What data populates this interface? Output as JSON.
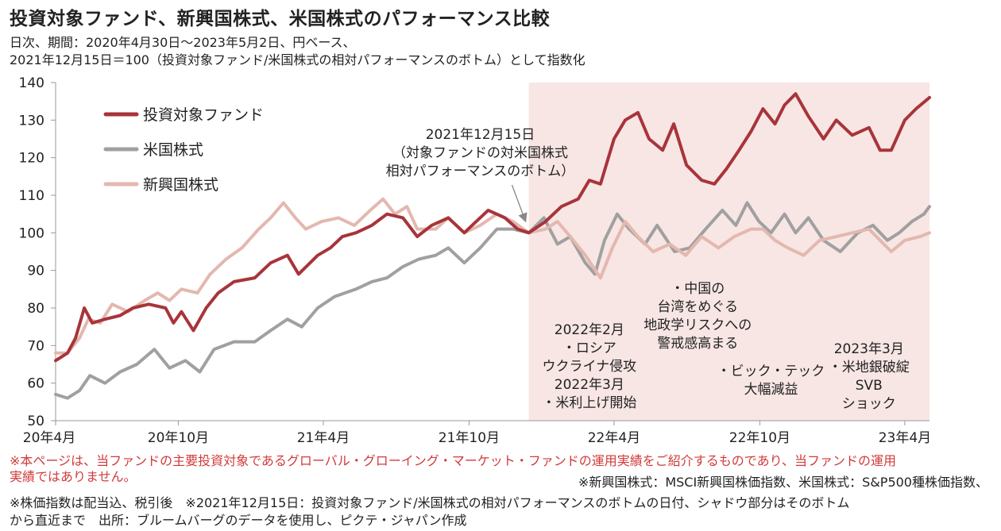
{
  "title": "投資対象ファンド、新興国株式、米国株式のパフォーマンス比較",
  "subtitle1": "日次、期間：2020年4月30日～2023年5月2日、円ベース、",
  "subtitle2": "2021年12月15日＝100（投資対象ファンド/米国株式の相対パフォーマンスのボトム）として指数化",
  "notes": {
    "line1": "※本ページは、当ファンドの主要投資対象であるグローバル・グローイング・マーケット・ファンドの運用実績をご紹介するものであり、当ファンドの運用",
    "line2": "実績ではありません。",
    "line3": "※新興国株式：MSCI新興国株価指数、米国株式：S&P500種株価指数、",
    "line4": "※株価指数は配当込、税引後　※2021年12月15日：投資対象ファンド/米国株式の相対パフォーマンスのボトムの日付、シャドウ部分はそのボトム",
    "line5": "から直近まで　出所：ブルームバーグのデータを使用し、ピクテ・ジャパン作成"
  },
  "chart_data": {
    "type": "line",
    "ylim": [
      50,
      140
    ],
    "yticks": [
      50,
      60,
      70,
      80,
      90,
      100,
      110,
      120,
      130,
      140
    ],
    "xlim": [
      "2020-04-30",
      "2023-05-02"
    ],
    "xticks": [
      {
        "date": "2020-04-01",
        "label": "20年4月"
      },
      {
        "date": "2020-10-01",
        "label": "20年10月"
      },
      {
        "date": "2021-04-01",
        "label": "21年4月"
      },
      {
        "date": "2021-10-01",
        "label": "21年10月"
      },
      {
        "date": "2022-04-01",
        "label": "22年4月"
      },
      {
        "date": "2022-10-01",
        "label": "22年10月"
      },
      {
        "date": "2023-04-01",
        "label": "23年4月"
      }
    ],
    "shade": {
      "from": "2021-12-15",
      "to": "2023-05-02",
      "color": "#f7e6e4"
    },
    "legend_position": "top-left",
    "series": [
      {
        "name": "投資対象ファンド",
        "color": "#a8343a",
        "points": [
          [
            "2020-04-30",
            66
          ],
          [
            "2020-05-15",
            68
          ],
          [
            "2020-05-25",
            72
          ],
          [
            "2020-06-05",
            80
          ],
          [
            "2020-06-15",
            76
          ],
          [
            "2020-07-01",
            77
          ],
          [
            "2020-07-20",
            78
          ],
          [
            "2020-08-05",
            80
          ],
          [
            "2020-08-25",
            81
          ],
          [
            "2020-09-15",
            80
          ],
          [
            "2020-09-25",
            76
          ],
          [
            "2020-10-05",
            79
          ],
          [
            "2020-10-20",
            74
          ],
          [
            "2020-11-05",
            80
          ],
          [
            "2020-11-20",
            84
          ],
          [
            "2020-12-10",
            87
          ],
          [
            "2021-01-05",
            88
          ],
          [
            "2021-01-25",
            92
          ],
          [
            "2021-02-15",
            94
          ],
          [
            "2021-03-01",
            89
          ],
          [
            "2021-03-25",
            94
          ],
          [
            "2021-04-10",
            96
          ],
          [
            "2021-04-25",
            99
          ],
          [
            "2021-05-12",
            100
          ],
          [
            "2021-06-01",
            102
          ],
          [
            "2021-06-20",
            105
          ],
          [
            "2021-07-10",
            104
          ],
          [
            "2021-07-28",
            99
          ],
          [
            "2021-08-15",
            102
          ],
          [
            "2021-09-05",
            104
          ],
          [
            "2021-09-25",
            100
          ],
          [
            "2021-10-10",
            103
          ],
          [
            "2021-10-25",
            106
          ],
          [
            "2021-11-15",
            104
          ],
          [
            "2021-12-01",
            101
          ],
          [
            "2021-12-15",
            100
          ],
          [
            "2022-01-05",
            103
          ],
          [
            "2022-01-25",
            107
          ],
          [
            "2022-02-15",
            109
          ],
          [
            "2022-03-01",
            114
          ],
          [
            "2022-03-15",
            113
          ],
          [
            "2022-04-01",
            125
          ],
          [
            "2022-04-15",
            130
          ],
          [
            "2022-05-01",
            132
          ],
          [
            "2022-05-15",
            125
          ],
          [
            "2022-06-01",
            122
          ],
          [
            "2022-06-15",
            129
          ],
          [
            "2022-07-01",
            118
          ],
          [
            "2022-07-20",
            114
          ],
          [
            "2022-08-05",
            113
          ],
          [
            "2022-08-20",
            117
          ],
          [
            "2022-09-05",
            122
          ],
          [
            "2022-09-20",
            127
          ],
          [
            "2022-10-05",
            133
          ],
          [
            "2022-10-20",
            129
          ],
          [
            "2022-11-01",
            134
          ],
          [
            "2022-11-15",
            137
          ],
          [
            "2022-12-01",
            131
          ],
          [
            "2022-12-20",
            125
          ],
          [
            "2023-01-05",
            130
          ],
          [
            "2023-01-25",
            126
          ],
          [
            "2023-02-15",
            128
          ],
          [
            "2023-03-01",
            122
          ],
          [
            "2023-03-15",
            122
          ],
          [
            "2023-04-01",
            130
          ],
          [
            "2023-04-15",
            133
          ],
          [
            "2023-05-02",
            136
          ]
        ]
      },
      {
        "name": "米国株式",
        "color": "#a0a0a0",
        "points": [
          [
            "2020-04-30",
            57
          ],
          [
            "2020-05-15",
            56
          ],
          [
            "2020-05-30",
            58
          ],
          [
            "2020-06-12",
            62
          ],
          [
            "2020-07-01",
            60
          ],
          [
            "2020-07-20",
            63
          ],
          [
            "2020-08-10",
            65
          ],
          [
            "2020-09-01",
            69
          ],
          [
            "2020-09-20",
            64
          ],
          [
            "2020-10-10",
            66
          ],
          [
            "2020-10-28",
            63
          ],
          [
            "2020-11-15",
            69
          ],
          [
            "2020-12-10",
            71
          ],
          [
            "2021-01-05",
            71
          ],
          [
            "2021-01-25",
            74
          ],
          [
            "2021-02-15",
            77
          ],
          [
            "2021-03-05",
            75
          ],
          [
            "2021-03-25",
            80
          ],
          [
            "2021-04-15",
            83
          ],
          [
            "2021-05-12",
            85
          ],
          [
            "2021-06-01",
            87
          ],
          [
            "2021-06-20",
            88
          ],
          [
            "2021-07-10",
            91
          ],
          [
            "2021-07-30",
            93
          ],
          [
            "2021-08-20",
            94
          ],
          [
            "2021-09-05",
            96
          ],
          [
            "2021-09-25",
            92
          ],
          [
            "2021-10-15",
            96
          ],
          [
            "2021-11-05",
            101
          ],
          [
            "2021-11-25",
            101
          ],
          [
            "2021-12-15",
            100
          ],
          [
            "2022-01-03",
            104
          ],
          [
            "2022-01-20",
            97
          ],
          [
            "2022-02-05",
            99
          ],
          [
            "2022-02-24",
            92
          ],
          [
            "2022-03-08",
            89
          ],
          [
            "2022-03-20",
            98
          ],
          [
            "2022-04-05",
            105
          ],
          [
            "2022-04-20",
            101
          ],
          [
            "2022-05-10",
            97
          ],
          [
            "2022-05-25",
            102
          ],
          [
            "2022-06-16",
            95
          ],
          [
            "2022-07-05",
            96
          ],
          [
            "2022-07-25",
            101
          ],
          [
            "2022-08-15",
            106
          ],
          [
            "2022-09-01",
            102
          ],
          [
            "2022-09-15",
            108
          ],
          [
            "2022-09-30",
            103
          ],
          [
            "2022-10-15",
            100
          ],
          [
            "2022-11-01",
            105
          ],
          [
            "2022-11-15",
            100
          ],
          [
            "2022-12-01",
            104
          ],
          [
            "2022-12-20",
            98
          ],
          [
            "2023-01-10",
            95
          ],
          [
            "2023-02-01",
            100
          ],
          [
            "2023-02-20",
            102
          ],
          [
            "2023-03-10",
            98
          ],
          [
            "2023-03-25",
            100
          ],
          [
            "2023-04-10",
            103
          ],
          [
            "2023-04-25",
            105
          ],
          [
            "2023-05-02",
            107
          ]
        ]
      },
      {
        "name": "新興国株式",
        "color": "#e3b8ae",
        "points": [
          [
            "2020-04-30",
            68
          ],
          [
            "2020-05-15",
            68
          ],
          [
            "2020-05-30",
            72
          ],
          [
            "2020-06-10",
            77
          ],
          [
            "2020-06-25",
            76
          ],
          [
            "2020-07-10",
            81
          ],
          [
            "2020-07-30",
            79
          ],
          [
            "2020-08-20",
            82
          ],
          [
            "2020-09-05",
            84
          ],
          [
            "2020-09-20",
            82
          ],
          [
            "2020-10-05",
            85
          ],
          [
            "2020-10-25",
            84
          ],
          [
            "2020-11-10",
            89
          ],
          [
            "2020-11-30",
            93
          ],
          [
            "2020-12-20",
            96
          ],
          [
            "2021-01-10",
            101
          ],
          [
            "2021-01-25",
            104
          ],
          [
            "2021-02-10",
            108
          ],
          [
            "2021-02-25",
            104
          ],
          [
            "2021-03-10",
            101
          ],
          [
            "2021-03-30",
            103
          ],
          [
            "2021-04-20",
            104
          ],
          [
            "2021-05-10",
            102
          ],
          [
            "2021-05-30",
            106
          ],
          [
            "2021-06-15",
            109
          ],
          [
            "2021-06-30",
            105
          ],
          [
            "2021-07-15",
            107
          ],
          [
            "2021-07-28",
            101
          ],
          [
            "2021-08-20",
            101
          ],
          [
            "2021-09-05",
            104
          ],
          [
            "2021-09-25",
            100
          ],
          [
            "2021-10-15",
            102
          ],
          [
            "2021-11-05",
            105
          ],
          [
            "2021-11-25",
            103
          ],
          [
            "2021-12-15",
            100
          ],
          [
            "2022-01-05",
            101
          ],
          [
            "2022-01-20",
            103
          ],
          [
            "2022-02-05",
            99
          ],
          [
            "2022-02-24",
            94
          ],
          [
            "2022-03-15",
            88
          ],
          [
            "2022-03-30",
            96
          ],
          [
            "2022-04-15",
            103
          ],
          [
            "2022-05-01",
            99
          ],
          [
            "2022-05-20",
            95
          ],
          [
            "2022-06-10",
            97
          ],
          [
            "2022-06-30",
            94
          ],
          [
            "2022-07-20",
            99
          ],
          [
            "2022-08-10",
            96
          ],
          [
            "2022-08-30",
            99
          ],
          [
            "2022-09-20",
            101
          ],
          [
            "2022-10-05",
            101
          ],
          [
            "2022-10-20",
            98
          ],
          [
            "2022-11-05",
            96
          ],
          [
            "2022-11-25",
            94
          ],
          [
            "2022-12-15",
            98
          ],
          [
            "2023-01-05",
            99
          ],
          [
            "2023-01-25",
            100
          ],
          [
            "2023-02-15",
            101
          ],
          [
            "2023-03-01",
            98
          ],
          [
            "2023-03-15",
            95
          ],
          [
            "2023-04-01",
            98
          ],
          [
            "2023-04-20",
            99
          ],
          [
            "2023-05-02",
            100
          ]
        ]
      }
    ],
    "annotations": [
      {
        "key": "bottom",
        "lines": [
          "2021年12月15日",
          "（対象ファンドの対米国株式",
          "相対パフォーマンスのボトム）"
        ],
        "x": "2021-10-15",
        "y": 125,
        "arrow_to": [
          "2021-12-15",
          103
        ]
      },
      {
        "key": "russia",
        "lines": [
          "2022年2月",
          "・ロシア",
          "ウクライナ侵攻",
          "2022年3月",
          "・米利上げ開始"
        ],
        "x": "2022-03-01",
        "y": 73
      },
      {
        "key": "taiwan",
        "lines": [
          "・中国の",
          "台湾をめぐる",
          "地政学リスクへの",
          "警戒感高まる"
        ],
        "x": "2022-07-15",
        "y": 84
      },
      {
        "key": "bigtech",
        "lines": [
          "・ビック・テック",
          "大幅減益"
        ],
        "x": "2022-10-15",
        "y": 62
      },
      {
        "key": "svb",
        "lines": [
          "2023年3月",
          "・米地銀破綻",
          "SVB",
          "ショック"
        ],
        "x": "2023-02-15",
        "y": 68
      }
    ]
  }
}
